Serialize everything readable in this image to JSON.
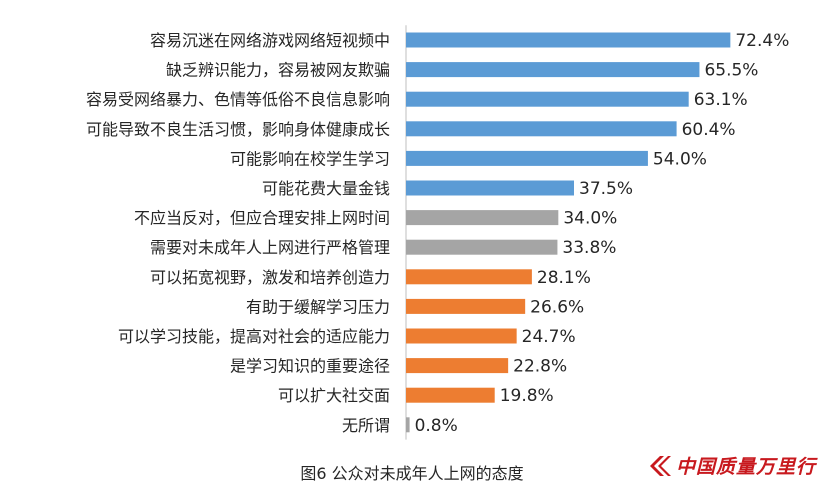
{
  "chart_data": {
    "type": "bar",
    "orientation": "horizontal",
    "caption": "图6 公众对未成年人上网的态度",
    "categories": [
      "容易沉迷在网络游戏网络短视频中",
      "缺乏辨识能力，容易被网友欺骗",
      "容易受网络暴力、色情等低俗不良信息影响",
      "可能导致不良生活习惯，影响身体健康成长",
      "可能影响在校学生学习",
      "可能花费大量金钱",
      "不应当反对，但应合理安排上网时间",
      "需要对未成年人上网进行严格管理",
      "可以拓宽视野，激发和培养创造力",
      "有助于缓解学习压力",
      "可以学习技能，提高对社会的适应能力",
      "是学习知识的重要途径",
      "可以扩大社交面",
      "无所谓"
    ],
    "values": [
      72.4,
      65.5,
      63.1,
      60.4,
      54.0,
      37.5,
      34.0,
      33.8,
      28.1,
      26.6,
      24.7,
      22.8,
      19.8,
      0.8
    ],
    "value_labels": [
      "72.4%",
      "65.5%",
      "63.1%",
      "60.4%",
      "54.0%",
      "37.5%",
      "34.0%",
      "33.8%",
      "28.1%",
      "26.6%",
      "24.7%",
      "22.8%",
      "19.8%",
      "0.8%"
    ],
    "bar_colors": [
      "#5b9bd5",
      "#5b9bd5",
      "#5b9bd5",
      "#5b9bd5",
      "#5b9bd5",
      "#5b9bd5",
      "#a5a5a5",
      "#a5a5a5",
      "#ed7d31",
      "#ed7d31",
      "#ed7d31",
      "#ed7d31",
      "#ed7d31",
      "#a5a5a5"
    ],
    "xlim": [
      0,
      75
    ],
    "grid": false,
    "legend": "none"
  },
  "watermark": {
    "text": "中国质量万里行",
    "color": "#c8191e"
  }
}
